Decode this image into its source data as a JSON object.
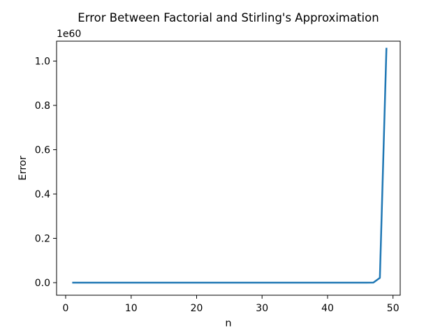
{
  "figure": {
    "kind": "matplotlib-line-plot",
    "background_color": "#ffffff"
  },
  "chart_data": {
    "type": "line",
    "title": "Error Between Factorial and Stirling's Approximation",
    "xlabel": "n",
    "ylabel": "Error",
    "offset_text": "1e60",
    "values_in_units_of": "1e60",
    "line_color": "#1f77b4",
    "grid": false,
    "legend": null,
    "xlim": [
      -1.39,
      51.1
    ],
    "ylim": [
      -0.0567,
      1.0898
    ],
    "xticks": [
      0,
      10,
      20,
      30,
      40,
      50
    ],
    "yticks": [
      "0.0",
      "0.2",
      "0.4",
      "0.6",
      "0.8",
      "1.0"
    ],
    "x": [
      1,
      2,
      3,
      4,
      5,
      6,
      7,
      8,
      9,
      10,
      11,
      12,
      13,
      14,
      15,
      16,
      17,
      18,
      19,
      20,
      21,
      22,
      23,
      24,
      25,
      26,
      27,
      28,
      29,
      30,
      31,
      32,
      33,
      34,
      35,
      36,
      37,
      38,
      39,
      40,
      41,
      42,
      43,
      44,
      45,
      46,
      47,
      48,
      49
    ],
    "values": [
      0,
      0,
      0,
      0,
      0,
      0,
      0,
      0,
      0,
      0,
      0,
      0,
      0,
      0,
      0,
      0,
      0,
      0,
      0,
      0,
      0,
      0,
      0,
      0,
      0,
      0,
      0,
      0,
      0,
      0,
      0,
      0,
      0,
      0,
      0,
      0,
      0,
      0,
      0,
      0,
      0,
      0,
      0,
      5e-09,
      2.2e-07,
      1e-05,
      0.00046,
      0.0216,
      1.06
    ]
  }
}
